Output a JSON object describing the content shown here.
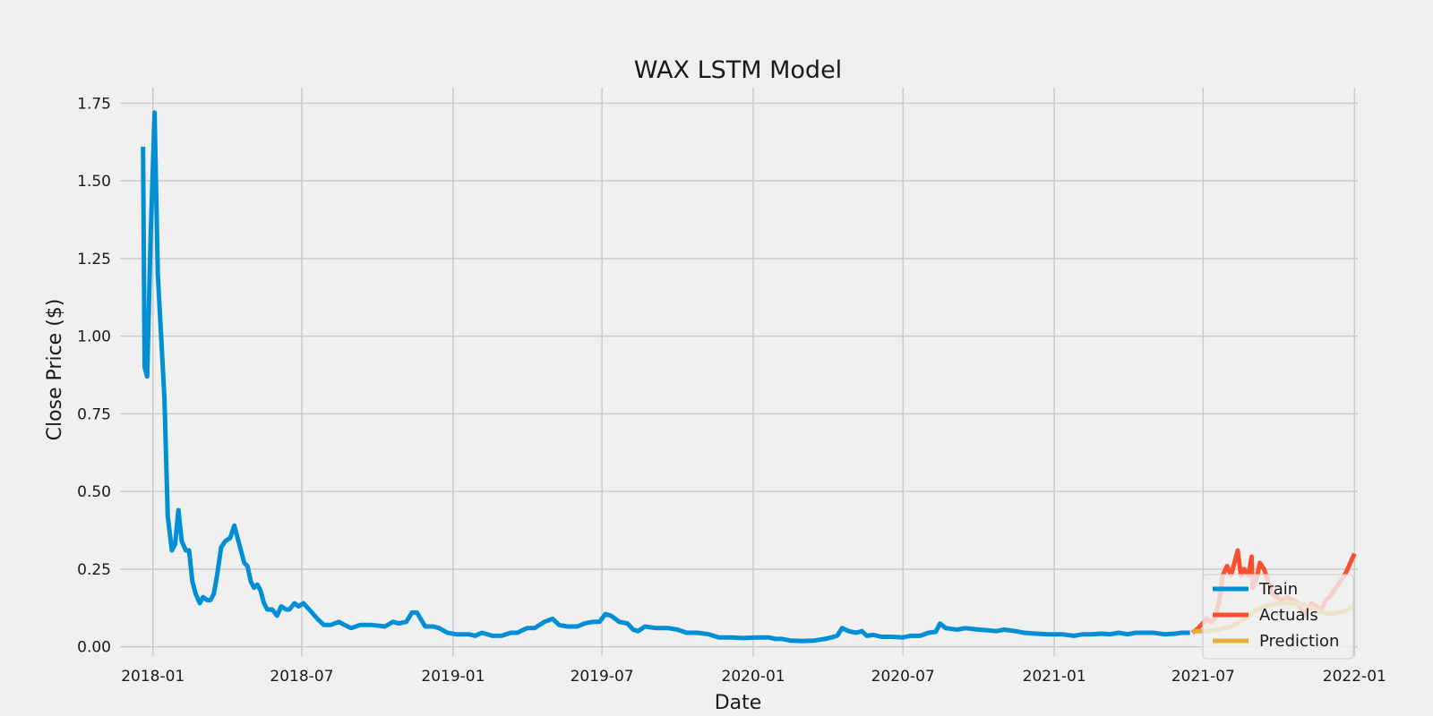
{
  "chart_data": {
    "type": "line",
    "title": "WAX LSTM Model",
    "xlabel": "Date",
    "ylabel": "Close Price ($)",
    "xlim": [
      "2017-11-22",
      "2022-01-05"
    ],
    "ylim": [
      -0.03,
      1.8
    ],
    "x_ticks": [
      "2018-01",
      "2018-07",
      "2019-01",
      "2019-07",
      "2020-01",
      "2020-07",
      "2021-01",
      "2021-07",
      "2022-01"
    ],
    "y_ticks": [
      0.0,
      0.25,
      0.5,
      0.75,
      1.0,
      1.25,
      1.5,
      1.75
    ],
    "y_tick_labels": [
      "0.00",
      "0.25",
      "0.50",
      "0.75",
      "1.00",
      "1.25",
      "1.50",
      "1.75"
    ],
    "grid": true,
    "legend_position": "lower-right",
    "background": "#f0f0f0",
    "grid_color": "#cbcbcb",
    "series": [
      {
        "name": "Train",
        "color": "#008fd5",
        "points": [
          [
            "2017-12-20",
            1.61
          ],
          [
            "2017-12-22",
            0.9
          ],
          [
            "2017-12-25",
            0.87
          ],
          [
            "2017-12-29",
            1.3
          ],
          [
            "2018-01-03",
            1.72
          ],
          [
            "2018-01-07",
            1.2
          ],
          [
            "2018-01-15",
            0.8
          ],
          [
            "2018-01-19",
            0.42
          ],
          [
            "2018-01-24",
            0.31
          ],
          [
            "2018-01-28",
            0.33
          ],
          [
            "2018-02-01",
            0.44
          ],
          [
            "2018-02-05",
            0.34
          ],
          [
            "2018-02-10",
            0.31
          ],
          [
            "2018-02-14",
            0.31
          ],
          [
            "2018-02-18",
            0.21
          ],
          [
            "2018-02-22",
            0.17
          ],
          [
            "2018-02-27",
            0.14
          ],
          [
            "2018-03-03",
            0.16
          ],
          [
            "2018-03-08",
            0.15
          ],
          [
            "2018-03-12",
            0.15
          ],
          [
            "2018-03-16",
            0.17
          ],
          [
            "2018-03-20",
            0.23
          ],
          [
            "2018-03-25",
            0.32
          ],
          [
            "2018-03-30",
            0.34
          ],
          [
            "2018-04-05",
            0.35
          ],
          [
            "2018-04-10",
            0.39
          ],
          [
            "2018-04-14",
            0.35
          ],
          [
            "2018-04-18",
            0.31
          ],
          [
            "2018-04-22",
            0.27
          ],
          [
            "2018-04-26",
            0.26
          ],
          [
            "2018-04-30",
            0.21
          ],
          [
            "2018-05-04",
            0.19
          ],
          [
            "2018-05-08",
            0.2
          ],
          [
            "2018-05-12",
            0.18
          ],
          [
            "2018-05-16",
            0.14
          ],
          [
            "2018-05-20",
            0.12
          ],
          [
            "2018-05-26",
            0.12
          ],
          [
            "2018-06-01",
            0.1
          ],
          [
            "2018-06-06",
            0.13
          ],
          [
            "2018-06-12",
            0.12
          ],
          [
            "2018-06-16",
            0.12
          ],
          [
            "2018-06-22",
            0.14
          ],
          [
            "2018-06-27",
            0.13
          ],
          [
            "2018-07-03",
            0.14
          ],
          [
            "2018-07-10",
            0.12
          ],
          [
            "2018-07-20",
            0.09
          ],
          [
            "2018-07-28",
            0.07
          ],
          [
            "2018-08-05",
            0.07
          ],
          [
            "2018-08-15",
            0.08
          ],
          [
            "2018-08-22",
            0.07
          ],
          [
            "2018-08-30",
            0.06
          ],
          [
            "2018-09-10",
            0.07
          ],
          [
            "2018-09-25",
            0.07
          ],
          [
            "2018-10-10",
            0.065
          ],
          [
            "2018-10-20",
            0.08
          ],
          [
            "2018-10-27",
            0.075
          ],
          [
            "2018-11-05",
            0.08
          ],
          [
            "2018-11-12",
            0.11
          ],
          [
            "2018-11-18",
            0.11
          ],
          [
            "2018-11-28",
            0.065
          ],
          [
            "2018-12-08",
            0.065
          ],
          [
            "2018-12-15",
            0.06
          ],
          [
            "2018-12-25",
            0.045
          ],
          [
            "2019-01-05",
            0.04
          ],
          [
            "2019-01-20",
            0.04
          ],
          [
            "2019-01-28",
            0.035
          ],
          [
            "2019-02-05",
            0.045
          ],
          [
            "2019-02-18",
            0.035
          ],
          [
            "2019-03-01",
            0.035
          ],
          [
            "2019-03-12",
            0.045
          ],
          [
            "2019-03-20",
            0.045
          ],
          [
            "2019-04-01",
            0.06
          ],
          [
            "2019-04-10",
            0.06
          ],
          [
            "2019-04-22",
            0.08
          ],
          [
            "2019-05-02",
            0.09
          ],
          [
            "2019-05-10",
            0.07
          ],
          [
            "2019-05-20",
            0.065
          ],
          [
            "2019-06-01",
            0.065
          ],
          [
            "2019-06-10",
            0.075
          ],
          [
            "2019-06-20",
            0.08
          ],
          [
            "2019-06-28",
            0.08
          ],
          [
            "2019-07-05",
            0.105
          ],
          [
            "2019-07-12",
            0.1
          ],
          [
            "2019-07-22",
            0.08
          ],
          [
            "2019-08-01",
            0.075
          ],
          [
            "2019-08-08",
            0.055
          ],
          [
            "2019-08-14",
            0.05
          ],
          [
            "2019-08-22",
            0.065
          ],
          [
            "2019-09-05",
            0.06
          ],
          [
            "2019-09-20",
            0.06
          ],
          [
            "2019-10-01",
            0.055
          ],
          [
            "2019-10-12",
            0.045
          ],
          [
            "2019-10-25",
            0.045
          ],
          [
            "2019-11-08",
            0.04
          ],
          [
            "2019-11-20",
            0.03
          ],
          [
            "2019-12-05",
            0.03
          ],
          [
            "2019-12-20",
            0.028
          ],
          [
            "2020-01-05",
            0.03
          ],
          [
            "2020-01-20",
            0.03
          ],
          [
            "2020-01-28",
            0.025
          ],
          [
            "2020-02-05",
            0.025
          ],
          [
            "2020-02-15",
            0.02
          ],
          [
            "2020-03-01",
            0.018
          ],
          [
            "2020-03-15",
            0.02
          ],
          [
            "2020-03-28",
            0.025
          ],
          [
            "2020-04-05",
            0.03
          ],
          [
            "2020-04-12",
            0.035
          ],
          [
            "2020-04-18",
            0.06
          ],
          [
            "2020-04-26",
            0.05
          ],
          [
            "2020-05-05",
            0.045
          ],
          [
            "2020-05-12",
            0.05
          ],
          [
            "2020-05-18",
            0.035
          ],
          [
            "2020-05-26",
            0.038
          ],
          [
            "2020-06-05",
            0.032
          ],
          [
            "2020-06-18",
            0.032
          ],
          [
            "2020-07-01",
            0.03
          ],
          [
            "2020-07-10",
            0.035
          ],
          [
            "2020-07-22",
            0.035
          ],
          [
            "2020-08-01",
            0.045
          ],
          [
            "2020-08-10",
            0.048
          ],
          [
            "2020-08-15",
            0.075
          ],
          [
            "2020-08-22",
            0.06
          ],
          [
            "2020-09-05",
            0.055
          ],
          [
            "2020-09-15",
            0.06
          ],
          [
            "2020-10-01",
            0.055
          ],
          [
            "2020-10-12",
            0.053
          ],
          [
            "2020-10-22",
            0.05
          ],
          [
            "2020-11-01",
            0.055
          ],
          [
            "2020-11-15",
            0.05
          ],
          [
            "2020-11-25",
            0.045
          ],
          [
            "2020-12-10",
            0.042
          ],
          [
            "2020-12-25",
            0.04
          ],
          [
            "2021-01-10",
            0.04
          ],
          [
            "2021-01-25",
            0.035
          ],
          [
            "2021-02-05",
            0.04
          ],
          [
            "2021-02-15",
            0.04
          ],
          [
            "2021-02-28",
            0.042
          ],
          [
            "2021-03-10",
            0.04
          ],
          [
            "2021-03-20",
            0.045
          ],
          [
            "2021-03-31",
            0.04
          ],
          [
            "2021-04-10",
            0.045
          ],
          [
            "2021-04-20",
            0.045
          ],
          [
            "2021-05-01",
            0.045
          ],
          [
            "2021-05-15",
            0.04
          ],
          [
            "2021-05-28",
            0.042
          ],
          [
            "2021-06-05",
            0.045
          ],
          [
            "2021-06-15",
            0.045
          ]
        ]
      },
      {
        "name": "Actuals",
        "color": "#fc4f30",
        "points": [
          [
            "2021-06-18",
            0.045
          ],
          [
            "2021-06-25",
            0.06
          ],
          [
            "2021-07-02",
            0.08
          ],
          [
            "2021-07-05",
            0.09
          ],
          [
            "2021-07-10",
            0.08
          ],
          [
            "2021-07-15",
            0.09
          ],
          [
            "2021-07-20",
            0.14
          ],
          [
            "2021-07-25",
            0.23
          ],
          [
            "2021-07-30",
            0.26
          ],
          [
            "2021-08-04",
            0.23
          ],
          [
            "2021-08-08",
            0.27
          ],
          [
            "2021-08-12",
            0.31
          ],
          [
            "2021-08-16",
            0.23
          ],
          [
            "2021-08-20",
            0.25
          ],
          [
            "2021-08-25",
            0.23
          ],
          [
            "2021-08-30",
            0.19
          ],
          [
            "2021-09-04",
            0.22
          ],
          [
            "2021-09-08",
            0.27
          ],
          [
            "2021-09-13",
            0.25
          ],
          [
            "2021-09-18",
            0.21
          ],
          [
            "2021-09-23",
            0.17
          ],
          [
            "2021-09-28",
            0.16
          ],
          [
            "2021-10-05",
            0.15
          ],
          [
            "2021-10-12",
            0.16
          ],
          [
            "2021-10-18",
            0.15
          ],
          [
            "2021-10-23",
            0.145
          ],
          [
            "2021-10-28",
            0.12
          ],
          [
            "2021-11-02",
            0.1
          ],
          [
            "2021-11-06",
            0.13
          ],
          [
            "2021-11-10",
            0.14
          ],
          [
            "2021-11-16",
            0.13
          ],
          [
            "2021-11-22",
            0.12
          ],
          [
            "2021-11-27",
            0.15
          ],
          [
            "2021-12-02",
            0.16
          ],
          [
            "2021-12-07",
            0.18
          ],
          [
            "2021-12-12",
            0.2
          ],
          [
            "2021-12-17",
            0.22
          ],
          [
            "2021-12-22",
            0.24
          ],
          [
            "2021-12-27",
            0.27
          ],
          [
            "2022-01-01",
            0.3
          ],
          [
            "2021-08-29",
            0.29
          ]
        ]
      },
      {
        "name": "Prediction",
        "color": "#e5ae38",
        "points": [
          [
            "2021-06-18",
            0.05
          ],
          [
            "2021-07-05",
            0.05
          ],
          [
            "2021-07-20",
            0.055
          ],
          [
            "2021-08-05",
            0.065
          ],
          [
            "2021-08-20",
            0.09
          ],
          [
            "2021-09-05",
            0.12
          ],
          [
            "2021-09-20",
            0.135
          ],
          [
            "2021-10-05",
            0.14
          ],
          [
            "2021-10-20",
            0.14
          ],
          [
            "2021-11-01",
            0.135
          ],
          [
            "2021-11-15",
            0.12
          ],
          [
            "2021-11-25",
            0.11
          ],
          [
            "2021-12-05",
            0.105
          ],
          [
            "2021-12-20",
            0.115
          ],
          [
            "2021-12-30",
            0.13
          ]
        ]
      }
    ]
  }
}
